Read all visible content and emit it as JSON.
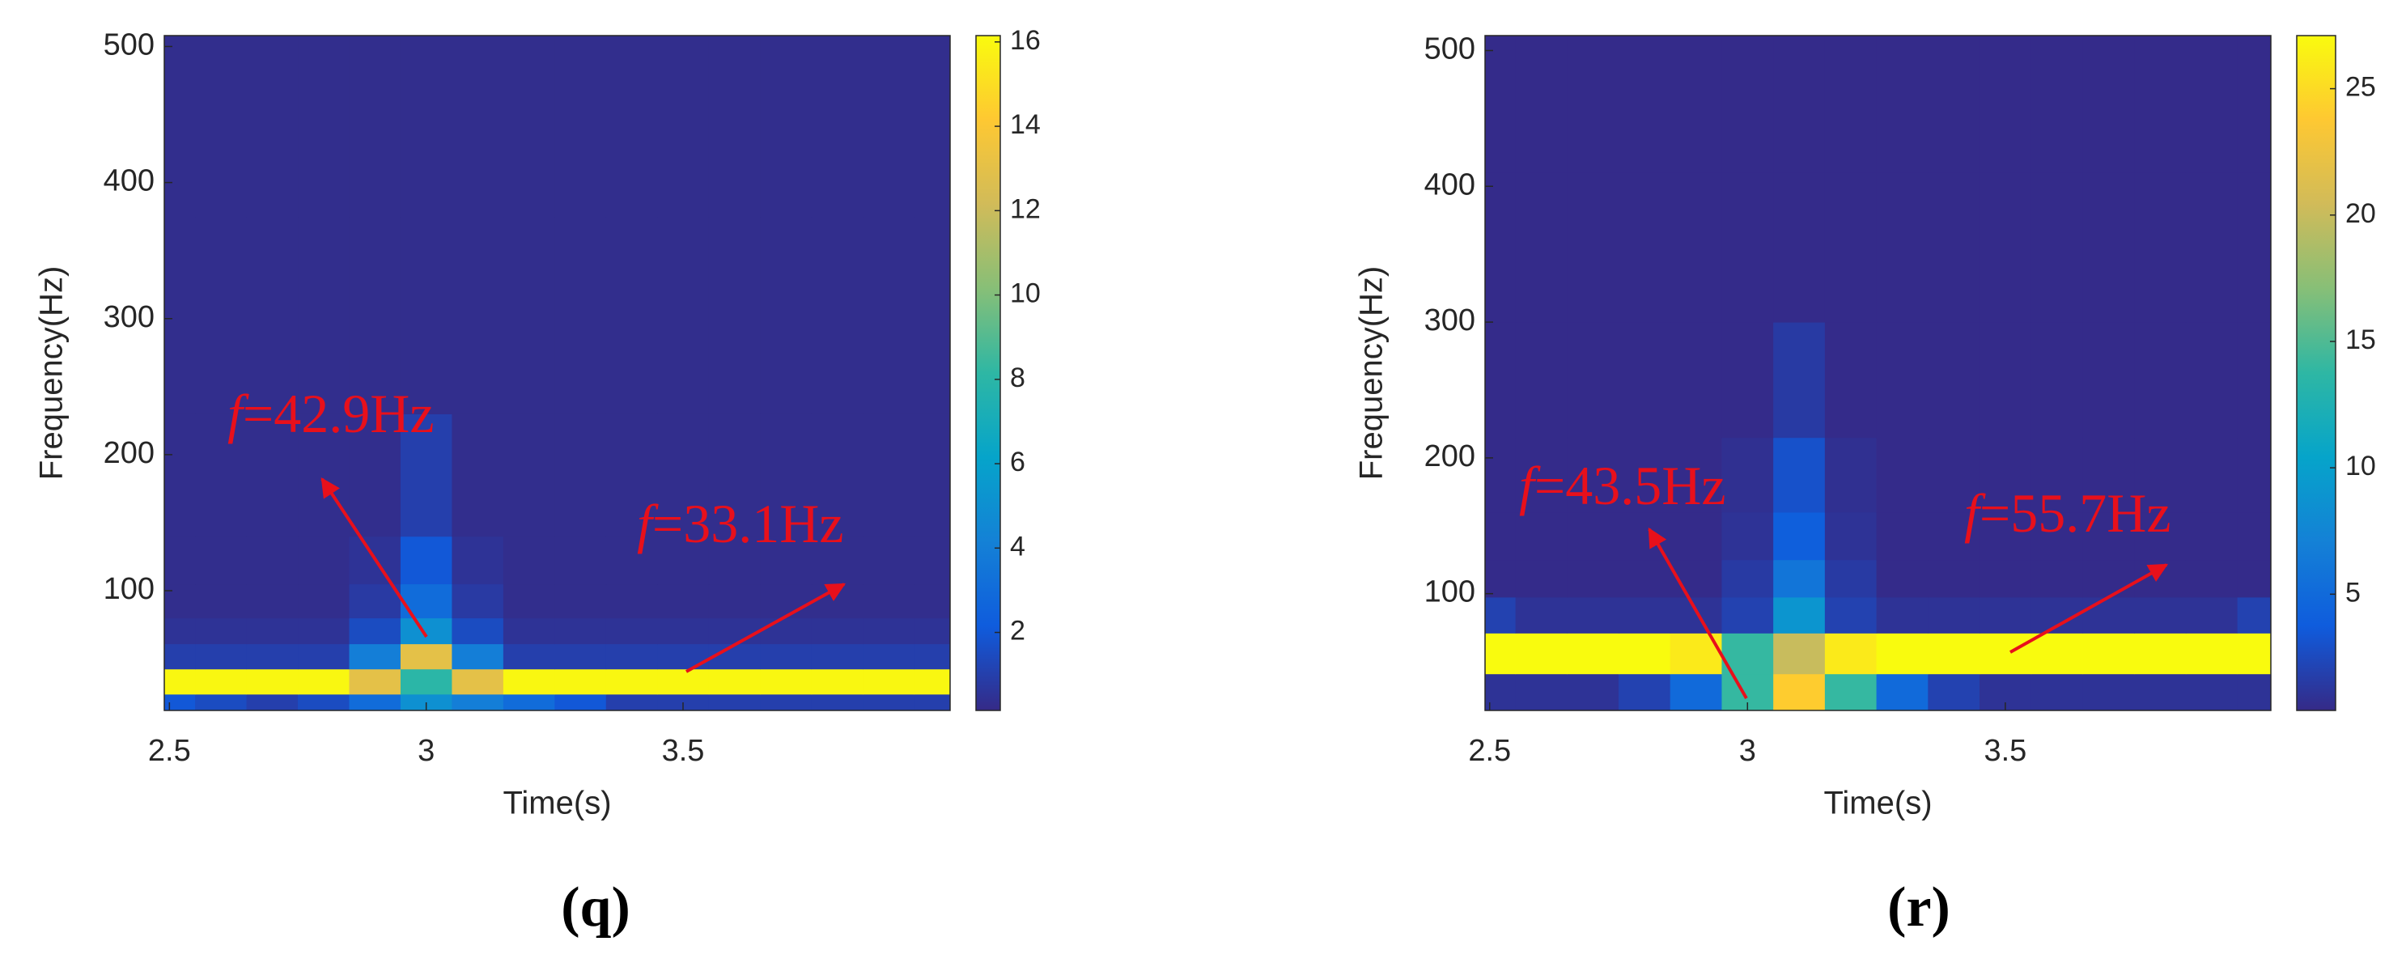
{
  "chart_data": [
    {
      "type": "heatmap",
      "label": "(q)",
      "xlabel": "Time(s)",
      "ylabel": "Frequency(Hz)",
      "x": [
        2.5,
        2.6,
        2.7,
        2.8,
        2.9,
        3.0,
        3.1,
        3.2,
        3.3,
        3.4,
        3.5,
        3.6,
        3.7,
        3.8,
        3.9,
        4.0
      ],
      "y": [
        15,
        33,
        52,
        70,
        90,
        120,
        160,
        300,
        450
      ],
      "z": [
        [
          2,
          1.5,
          1,
          1.5,
          3,
          5,
          4,
          3,
          2,
          1,
          1,
          1,
          1,
          1,
          1,
          1
        ],
        [
          16,
          16,
          16,
          16,
          13,
          8,
          13,
          16,
          16,
          16,
          16,
          16,
          16,
          16,
          16,
          16
        ],
        [
          1,
          1,
          1,
          1,
          4,
          13,
          4,
          1,
          1,
          1,
          1,
          1,
          1,
          1,
          1,
          1
        ],
        [
          0.5,
          0.5,
          0.5,
          0.5,
          1.5,
          5,
          1.5,
          0.5,
          0.5,
          0.5,
          0.5,
          0.5,
          0.5,
          0.5,
          0.5,
          0.5
        ],
        [
          0.3,
          0.3,
          0.3,
          0.3,
          0.8,
          3,
          0.8,
          0.3,
          0.3,
          0.3,
          0.3,
          0.3,
          0.3,
          0.3,
          0.3,
          0.3
        ],
        [
          0.3,
          0.3,
          0.3,
          0.3,
          0.5,
          2,
          0.5,
          0.3,
          0.3,
          0.3,
          0.3,
          0.3,
          0.3,
          0.3,
          0.3,
          0.3
        ],
        [
          0.3,
          0.3,
          0.3,
          0.3,
          0.3,
          1,
          0.3,
          0.3,
          0.3,
          0.3,
          0.3,
          0.3,
          0.3,
          0.3,
          0.3,
          0.3
        ],
        [
          0.3,
          0.3,
          0.3,
          0.3,
          0.3,
          0.3,
          0.3,
          0.3,
          0.3,
          0.3,
          0.3,
          0.3,
          0.3,
          0.3,
          0.3,
          0.3
        ],
        [
          0.3,
          0.3,
          0.3,
          0.3,
          0.3,
          0.3,
          0.3,
          0.3,
          0.3,
          0.3,
          0.3,
          0.3,
          0.3,
          0.3,
          0.3,
          0.3
        ]
      ],
      "xlim": [
        2.49,
        4.02
      ],
      "xticks": [
        2.5,
        3,
        3.5
      ],
      "ylim": [
        12,
        508
      ],
      "yticks": [
        100,
        200,
        300,
        400,
        500
      ],
      "clim": [
        0.15,
        16.15
      ],
      "cticks": [
        2,
        4,
        6,
        8,
        10,
        12,
        14,
        16
      ],
      "colormap": [
        "#352a87",
        "#0f5cdd",
        "#1481d6",
        "#06a4ca",
        "#2eb7a4",
        "#87bf77",
        "#d1bb59",
        "#fec832",
        "#f9fb0e"
      ],
      "annotations": [
        {
          "variable": "f",
          "text": "=42.9Hz"
        },
        {
          "variable": "f",
          "text": "=33.1Hz"
        }
      ]
    },
    {
      "type": "heatmap",
      "label": "(r)",
      "xlabel": "Time(s)",
      "ylabel": "Frequency(Hz)",
      "x": [
        2.5,
        2.6,
        2.7,
        2.8,
        2.9,
        3.0,
        3.1,
        3.2,
        3.3,
        3.4,
        3.5,
        3.6,
        3.7,
        3.8,
        3.9,
        4.0
      ],
      "y": [
        25,
        57,
        85,
        110,
        140,
        180,
        250,
        350,
        470
      ],
      "z": [
        [
          1,
          1,
          1,
          2,
          5,
          14,
          24,
          14,
          5,
          2,
          1,
          1,
          1,
          1,
          1,
          1
        ],
        [
          28,
          28,
          28,
          28,
          26,
          14,
          20,
          26,
          28,
          28,
          28,
          28,
          28,
          28,
          28,
          28
        ],
        [
          2,
          1,
          1,
          1,
          1,
          2,
          9,
          2,
          1,
          1,
          1,
          1,
          1,
          1,
          1,
          2
        ],
        [
          0.5,
          0.5,
          0.5,
          0.5,
          0.5,
          1.5,
          6,
          1.5,
          0.5,
          0.5,
          0.5,
          0.5,
          0.5,
          0.5,
          0.5,
          0.5
        ],
        [
          0.5,
          0.5,
          0.5,
          0.5,
          0.5,
          1,
          4,
          1,
          0.5,
          0.5,
          0.5,
          0.5,
          0.5,
          0.5,
          0.5,
          0.5
        ],
        [
          0.5,
          0.5,
          0.5,
          0.5,
          0.5,
          0.8,
          3,
          0.8,
          0.5,
          0.5,
          0.5,
          0.5,
          0.5,
          0.5,
          0.5,
          0.5
        ],
        [
          0.5,
          0.5,
          0.5,
          0.5,
          0.5,
          0.5,
          1.5,
          0.5,
          0.5,
          0.5,
          0.5,
          0.5,
          0.5,
          0.5,
          0.5,
          0.5
        ],
        [
          0.5,
          0.5,
          0.5,
          0.5,
          0.5,
          0.5,
          0.5,
          0.5,
          0.5,
          0.5,
          0.5,
          0.5,
          0.5,
          0.5,
          0.5,
          0.5
        ],
        [
          0.5,
          0.5,
          0.5,
          0.5,
          0.5,
          0.5,
          0.5,
          0.5,
          0.5,
          0.5,
          0.5,
          0.5,
          0.5,
          0.5,
          0.5,
          0.5
        ]
      ],
      "xlim": [
        2.491,
        4.015
      ],
      "xticks": [
        2.5,
        3,
        3.5
      ],
      "ylim": [
        14,
        511
      ],
      "yticks": [
        100,
        200,
        300,
        400,
        500
      ],
      "clim": [
        0.4,
        27.1
      ],
      "cticks": [
        5,
        10,
        15,
        20,
        25
      ],
      "colormap": [
        "#352a87",
        "#0f5cdd",
        "#1481d6",
        "#06a4ca",
        "#2eb7a4",
        "#87bf77",
        "#d1bb59",
        "#fec832",
        "#f9fb0e"
      ],
      "annotations": [
        {
          "variable": "f",
          "text": "=43.5Hz"
        },
        {
          "variable": "f",
          "text": "=55.7Hz"
        }
      ]
    }
  ]
}
